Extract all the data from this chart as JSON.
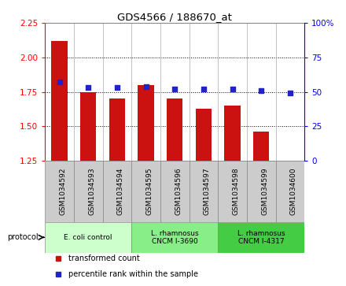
{
  "title": "GDS4566 / 188670_at",
  "samples": [
    "GSM1034592",
    "GSM1034593",
    "GSM1034594",
    "GSM1034595",
    "GSM1034596",
    "GSM1034597",
    "GSM1034598",
    "GSM1034599",
    "GSM1034600"
  ],
  "transformed_count": [
    2.12,
    1.75,
    1.7,
    1.8,
    1.7,
    1.63,
    1.65,
    1.46,
    1.25
  ],
  "percentile_rank": [
    57,
    53,
    53,
    54,
    52,
    52,
    52,
    51,
    49
  ],
  "ylim_left": [
    1.25,
    2.25
  ],
  "ylim_right": [
    0,
    100
  ],
  "yticks_left": [
    1.25,
    1.5,
    1.75,
    2.0,
    2.25
  ],
  "yticks_right": [
    0,
    25,
    50,
    75,
    100
  ],
  "ytick_labels_right": [
    "0",
    "25",
    "50",
    "75",
    "100%"
  ],
  "bar_color": "#cc1111",
  "dot_color": "#2222cc",
  "bar_bottom": 1.25,
  "groups": [
    {
      "label": "E. coli control",
      "start": 0,
      "end": 3,
      "color": "#ccffcc"
    },
    {
      "label": "L. rhamnosus\nCNCM I-3690",
      "start": 3,
      "end": 6,
      "color": "#88ee88"
    },
    {
      "label": "L. rhamnosus\nCNCM I-4317",
      "start": 6,
      "end": 9,
      "color": "#44cc44"
    }
  ],
  "legend_items": [
    {
      "label": "transformed count",
      "color": "#cc1111"
    },
    {
      "label": "percentile rank within the sample",
      "color": "#2222cc"
    }
  ],
  "protocol_label": "protocol",
  "sample_bg": "#cccccc",
  "plot_bg": "#ffffff"
}
